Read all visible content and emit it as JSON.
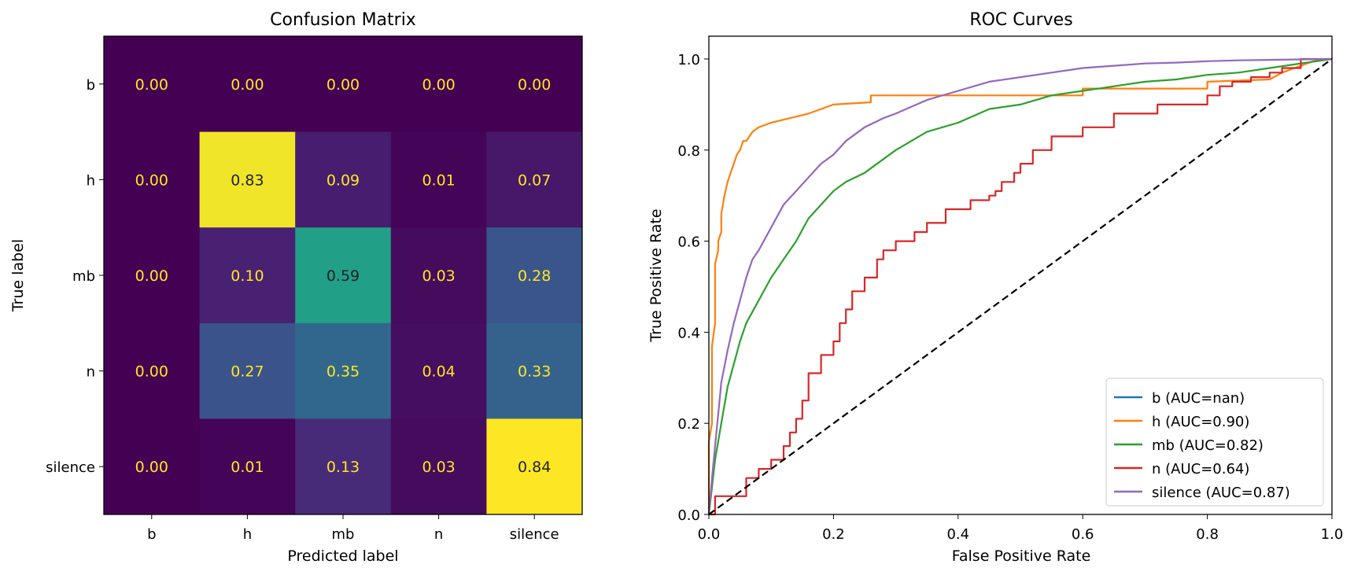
{
  "chart_data": [
    {
      "type": "heatmap",
      "title": "Confusion Matrix",
      "xlabel": "Predicted label",
      "ylabel": "True label",
      "x_categories": [
        "b",
        "h",
        "mb",
        "n",
        "silence"
      ],
      "y_categories": [
        "b",
        "h",
        "mb",
        "n",
        "silence"
      ],
      "values": [
        [
          0.0,
          0.0,
          0.0,
          0.0,
          0.0
        ],
        [
          0.0,
          0.83,
          0.09,
          0.01,
          0.07
        ],
        [
          0.0,
          0.1,
          0.59,
          0.03,
          0.28
        ],
        [
          0.0,
          0.27,
          0.35,
          0.04,
          0.33
        ],
        [
          0.0,
          0.01,
          0.13,
          0.03,
          0.84
        ]
      ],
      "colormap": "viridis",
      "grid": false
    },
    {
      "type": "line",
      "title": "ROC Curves",
      "xlabel": "False Positive Rate",
      "ylabel": "True Positive Rate",
      "xlim": [
        0.0,
        1.0
      ],
      "ylim": [
        0.0,
        1.05
      ],
      "xticks": [
        "0.0",
        "0.2",
        "0.4",
        "0.6",
        "0.8",
        "1.0"
      ],
      "yticks": [
        "0.0",
        "0.2",
        "0.4",
        "0.6",
        "0.8",
        "1.0"
      ],
      "grid": false,
      "legend_position": "lower-right",
      "diagonal": {
        "x": [
          0,
          1
        ],
        "y": [
          0,
          1
        ],
        "style": "dashed",
        "color": "#000000"
      },
      "series": [
        {
          "name": "b (AUC=nan)",
          "color": "#1f77b4",
          "x": [],
          "y": []
        },
        {
          "name": "h (AUC=0.90)",
          "color": "#ff7f0e",
          "x": [
            0,
            0,
            0.005,
            0.005,
            0.01,
            0.01,
            0.015,
            0.015,
            0.02,
            0.02,
            0.025,
            0.03,
            0.035,
            0.04,
            0.045,
            0.05,
            0.055,
            0.06,
            0.065,
            0.07,
            0.08,
            0.09,
            0.1,
            0.13,
            0.16,
            0.2,
            0.26,
            0.26,
            0.6,
            0.6,
            0.8,
            0.8,
            0.9,
            0.92,
            0.95,
            0.97,
            1.0
          ],
          "y": [
            0,
            0.16,
            0.2,
            0.37,
            0.42,
            0.55,
            0.58,
            0.6,
            0.62,
            0.66,
            0.7,
            0.73,
            0.75,
            0.77,
            0.79,
            0.8,
            0.82,
            0.82,
            0.83,
            0.84,
            0.85,
            0.855,
            0.86,
            0.87,
            0.88,
            0.9,
            0.905,
            0.92,
            0.92,
            0.935,
            0.935,
            0.95,
            0.955,
            0.97,
            0.985,
            0.995,
            1.0
          ]
        },
        {
          "name": "mb (AUC=0.82)",
          "color": "#2ca02c",
          "x": [
            0,
            0.005,
            0.01,
            0.02,
            0.03,
            0.04,
            0.05,
            0.06,
            0.08,
            0.1,
            0.12,
            0.14,
            0.16,
            0.18,
            0.2,
            0.22,
            0.25,
            0.28,
            0.3,
            0.35,
            0.4,
            0.45,
            0.5,
            0.55,
            0.6,
            0.65,
            0.7,
            0.75,
            0.8,
            0.85,
            0.9,
            0.95,
            1.0
          ],
          "y": [
            0,
            0.06,
            0.12,
            0.2,
            0.28,
            0.33,
            0.38,
            0.42,
            0.47,
            0.52,
            0.56,
            0.6,
            0.65,
            0.68,
            0.71,
            0.73,
            0.75,
            0.78,
            0.8,
            0.84,
            0.86,
            0.89,
            0.9,
            0.92,
            0.93,
            0.94,
            0.95,
            0.955,
            0.965,
            0.97,
            0.98,
            0.99,
            1.0
          ]
        },
        {
          "name": "n (AUC=0.64)",
          "color": "#d62728",
          "x": [
            0,
            0.01,
            0.01,
            0.06,
            0.06,
            0.08,
            0.08,
            0.1,
            0.1,
            0.12,
            0.12,
            0.13,
            0.13,
            0.14,
            0.14,
            0.15,
            0.15,
            0.16,
            0.16,
            0.18,
            0.18,
            0.2,
            0.2,
            0.21,
            0.21,
            0.22,
            0.22,
            0.23,
            0.23,
            0.25,
            0.25,
            0.27,
            0.27,
            0.28,
            0.28,
            0.3,
            0.3,
            0.31,
            0.31,
            0.33,
            0.33,
            0.35,
            0.35,
            0.36,
            0.36,
            0.38,
            0.38,
            0.42,
            0.42,
            0.45,
            0.45,
            0.46,
            0.46,
            0.47,
            0.47,
            0.49,
            0.49,
            0.5,
            0.5,
            0.52,
            0.52,
            0.55,
            0.55,
            0.57,
            0.57,
            0.6,
            0.6,
            0.65,
            0.65,
            0.72,
            0.72,
            0.8,
            0.8,
            0.82,
            0.82,
            0.84,
            0.84,
            0.87,
            0.87,
            0.9,
            0.9,
            0.92,
            0.92,
            0.95,
            0.95,
            1.0
          ],
          "y": [
            0,
            0,
            0.04,
            0.04,
            0.08,
            0.08,
            0.1,
            0.1,
            0.12,
            0.12,
            0.15,
            0.15,
            0.18,
            0.18,
            0.21,
            0.21,
            0.25,
            0.25,
            0.31,
            0.31,
            0.35,
            0.35,
            0.38,
            0.38,
            0.42,
            0.42,
            0.45,
            0.45,
            0.49,
            0.49,
            0.52,
            0.52,
            0.56,
            0.56,
            0.58,
            0.58,
            0.6,
            0.6,
            0.6,
            0.6,
            0.62,
            0.62,
            0.64,
            0.64,
            0.64,
            0.64,
            0.67,
            0.67,
            0.69,
            0.69,
            0.7,
            0.7,
            0.71,
            0.71,
            0.73,
            0.73,
            0.75,
            0.75,
            0.77,
            0.77,
            0.8,
            0.8,
            0.83,
            0.83,
            0.83,
            0.83,
            0.85,
            0.85,
            0.88,
            0.88,
            0.9,
            0.9,
            0.92,
            0.92,
            0.94,
            0.94,
            0.95,
            0.95,
            0.96,
            0.96,
            0.97,
            0.97,
            0.98,
            0.98,
            1.0,
            1.0
          ]
        },
        {
          "name": "silence (AUC=0.87)",
          "color": "#9467bd",
          "x": [
            0,
            0.005,
            0.01,
            0.015,
            0.02,
            0.03,
            0.04,
            0.05,
            0.06,
            0.07,
            0.08,
            0.1,
            0.12,
            0.14,
            0.16,
            0.18,
            0.2,
            0.22,
            0.25,
            0.28,
            0.3,
            0.35,
            0.4,
            0.45,
            0.5,
            0.55,
            0.6,
            0.65,
            0.7,
            0.75,
            0.8,
            0.85,
            0.9,
            0.95,
            1.0
          ],
          "y": [
            0,
            0.08,
            0.15,
            0.22,
            0.29,
            0.36,
            0.42,
            0.47,
            0.52,
            0.56,
            0.58,
            0.63,
            0.68,
            0.71,
            0.74,
            0.77,
            0.79,
            0.82,
            0.85,
            0.87,
            0.88,
            0.91,
            0.93,
            0.95,
            0.96,
            0.97,
            0.98,
            0.985,
            0.99,
            0.992,
            0.995,
            0.997,
            0.998,
            0.999,
            1.0
          ]
        }
      ]
    }
  ]
}
